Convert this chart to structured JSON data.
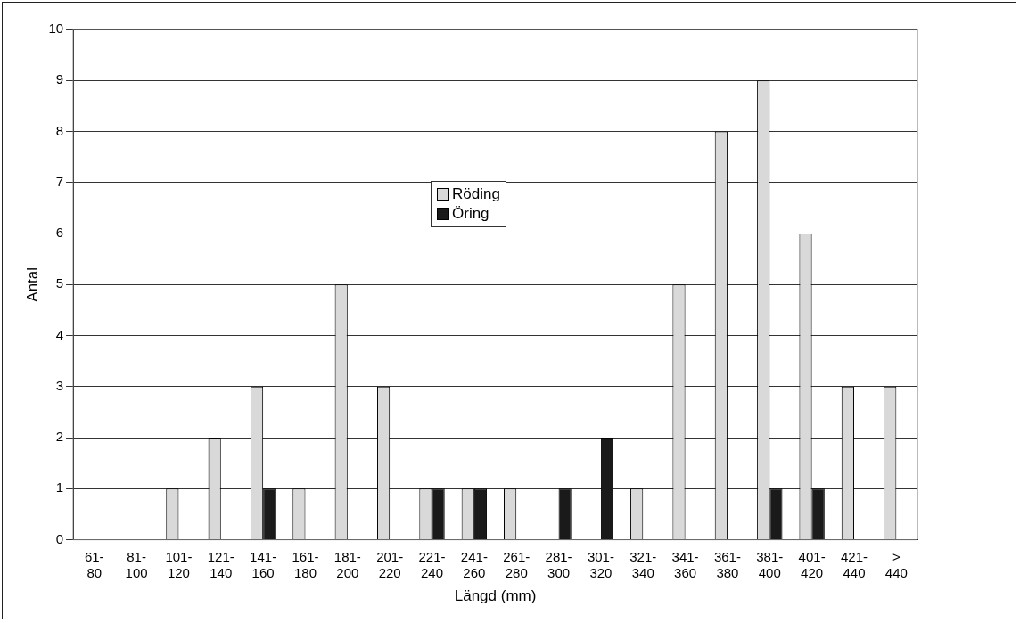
{
  "chart_data": {
    "type": "bar",
    "xlabel": "Längd (mm)",
    "ylabel": "Antal",
    "categories": [
      "61- 80",
      "81- 100",
      "101- 120",
      "121- 140",
      "141- 160",
      "161- 180",
      "181- 200",
      "201- 220",
      "221- 240",
      "241- 260",
      "261- 280",
      "281- 300",
      "301- 320",
      "321- 340",
      "341- 360",
      "361- 380",
      "381- 400",
      "401- 420",
      "421- 440",
      "> 440"
    ],
    "series": [
      {
        "name": "Röding",
        "color": "#d9d9d9",
        "values": [
          0,
          0,
          1,
          2,
          3,
          1,
          5,
          3,
          1,
          1,
          1,
          0,
          0,
          1,
          5,
          8,
          9,
          6,
          3,
          3
        ]
      },
      {
        "name": "Öring",
        "color": "#1a1a1a",
        "values": [
          0,
          0,
          0,
          0,
          1,
          0,
          0,
          0,
          1,
          1,
          0,
          1,
          2,
          0,
          0,
          0,
          1,
          1,
          0,
          0
        ]
      }
    ],
    "ylim": [
      0,
      10
    ],
    "yticks": [
      0,
      1,
      2,
      3,
      4,
      5,
      6,
      7,
      8,
      9,
      10
    ],
    "grid": "y",
    "legend": "top"
  }
}
